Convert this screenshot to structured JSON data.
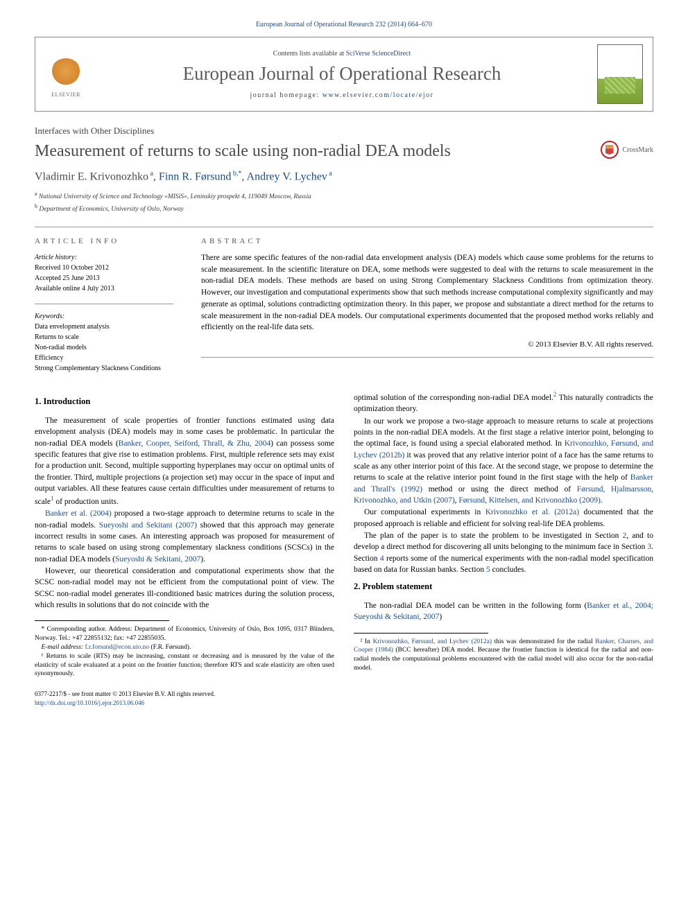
{
  "journal_ref": "European Journal of Operational Research 232 (2014) 664–670",
  "header": {
    "contents_prefix": "Contents lists available at ",
    "contents_link": "SciVerse ScienceDirect",
    "journal_title": "European Journal of Operational Research",
    "homepage_prefix": "journal homepage: ",
    "homepage_link": "www.elsevier.com/locate/ejor",
    "publisher": "ELSEVIER"
  },
  "section_tag": "Interfaces with Other Disciplines",
  "title": "Measurement of returns to scale using non-radial DEA models",
  "crossmark": "CrossMark",
  "authors_html": "Vladimir E. Krivonozhko ᵃ, Finn R. Førsund ᵇ·*, Andrey V. Lychev ᵃ",
  "authors": [
    {
      "name": "Vladimir E. Krivonozhko",
      "aff": "a",
      "link": false
    },
    {
      "name": "Finn R. Førsund",
      "aff": "b,",
      "corr": "*",
      "link": true
    },
    {
      "name": "Andrey V. Lychev",
      "aff": "a",
      "link": true
    }
  ],
  "affiliations": [
    {
      "sup": "a",
      "text": "National University of Science and Technology «MISiS», Leninskiy prospekt 4, 119049 Moscow, Russia"
    },
    {
      "sup": "b",
      "text": "Department of Economics, University of Oslo, Norway"
    }
  ],
  "info": {
    "left_header": "article info",
    "right_header": "abstract",
    "history_label": "Article history:",
    "history": [
      "Received 10 October 2012",
      "Accepted 25 June 2013",
      "Available online 4 July 2013"
    ],
    "keywords_label": "Keywords:",
    "keywords": [
      "Data envelopment analysis",
      "Returns to scale",
      "Non-radial models",
      "Efficiency",
      "Strong Complementary Slackness Conditions"
    ]
  },
  "abstract": "There are some specific features of the non-radial data envelopment analysis (DEA) models which cause some problems for the returns to scale measurement. In the scientific literature on DEA, some methods were suggested to deal with the returns to scale measurement in the non-radial DEA models. These methods are based on using Strong Complementary Slackness Conditions from optimization theory. However, our investigation and computational experiments show that such methods increase computational complexity significantly and may generate as optimal, solutions contradicting optimization theory. In this paper, we propose and substantiate a direct method for the returns to scale measurement in the non-radial DEA models. Our computational experiments documented that the proposed method works reliably and efficiently on the real-life data sets.",
  "copyright": "© 2013 Elsevier B.V. All rights reserved.",
  "sections": {
    "s1_title": "1. Introduction",
    "s1_p1a": "The measurement of scale properties of frontier functions estimated using data envelopment analysis (DEA) models may in some cases be problematic. In particular the non-radial DEA models (",
    "s1_p1_ref1": "Banker, Cooper, Seiford, Thrall, & Zhu, 2004",
    "s1_p1b": ") can possess some specific features that give rise to estimation problems. First, multiple reference sets may exist for a production unit. Second, multiple supporting hyperplanes may occur on optimal units of the frontier. Third, multiple projections (a projection set) may occur in the space of input and output variables. All these features cause certain difficulties under measurement of returns to scale",
    "s1_p1_fn": "1",
    "s1_p1c": " of production units.",
    "s1_p2_ref1": "Banker et al. (2004)",
    "s1_p2a": " proposed a two-stage approach to determine returns to scale in the non-radial models. ",
    "s1_p2_ref2": "Sueyoshi and Sekitani (2007)",
    "s1_p2b": " showed that this approach may generate incorrect results in some cases. An interesting approach was proposed for measurement of returns to scale based on using strong complementary slackness conditions (SCSCs) in the non-radial DEA models (",
    "s1_p2_ref3": "Sueyoshi & Sekitani, 2007",
    "s1_p2c": ").",
    "s1_p3": "However, our theoretical consideration and computational experiments show that the SCSC non-radial model may not be efficient from the computational point of view. The SCSC non-radial model generates ill-conditioned basic matrices during the solution process, which results in solutions that do not coincide with the",
    "s1_p3b": "optimal solution of the corresponding non-radial DEA model.",
    "s1_p3_fn": "2",
    "s1_p3c": " This naturally contradicts the optimization theory.",
    "s1_p4a": "In our work we propose a two-stage approach to measure returns to scale at projections points in the non-radial DEA models. At the first stage a relative interior point, belonging to the optimal face, is found using a special elaborated method. In ",
    "s1_p4_ref1": "Krivonozhko, Førsund, and Lychev (2012b)",
    "s1_p4b": " it was proved that any relative interior point of a face has the same returns to scale as any other interior point of this face. At the second stage, we propose to determine the returns to scale at the relative interior point found in the first stage with the help of ",
    "s1_p4_ref2": "Banker and Thrall's (1992)",
    "s1_p4c": " method or using the direct method of ",
    "s1_p4_ref3": "Førsund, Hjalmarsson, Krivonozhko, and Utkin (2007)",
    "s1_p4d": ", ",
    "s1_p4_ref4": "Førsund, Kittelsen, and Krivonozhko (2009)",
    "s1_p4e": ".",
    "s1_p5a": "Our computational experiments in ",
    "s1_p5_ref1": "Krivonozhko et al. (2012a)",
    "s1_p5b": " documented that the proposed approach is reliable and efficient for solving real-life DEA problems.",
    "s1_p6a": "The plan of the paper is to state the problem to be investigated in Section ",
    "s1_p6_ref1": "2",
    "s1_p6b": ", and to develop a direct method for discovering all units belonging to the minimum face in Section ",
    "s1_p6_ref2": "3",
    "s1_p6c": ". Section ",
    "s1_p6_ref3": "4",
    "s1_p6d": " reports some of the numerical experiments with the non-radial model specification based on data for Russian banks. Section ",
    "s1_p6_ref4": "5",
    "s1_p6e": " concludes.",
    "s2_title": "2. Problem statement",
    "s2_p1a": "The non-radial DEA model can be written in the following form (",
    "s2_p1_ref1": "Banker et al., 2004; Sueyoshi & Sekitani, 2007",
    "s2_p1b": ")"
  },
  "footnotes_left": {
    "corr": "* Corresponding author. Address: Department of Economics, University of Oslo, Box 1095, 0317 Blindern, Norway. Tel.: +47 22855132; fax: +47 22855035.",
    "email_label": "E-mail address:",
    "email": "f.r.forsund@econ.uio.no",
    "email_who": "(F.R. Førsund).",
    "fn1": "¹ Returns to scale (RTS) may be increasing, constant or decreasing and is measured by the value of the elasticity of scale evaluated at a point on the frontier function; therefore RTS and scale elasticity are often used synonymously."
  },
  "footnotes_right": {
    "fn2a": "² In ",
    "fn2_ref1": "Krivonozhko, Førsund, and Lychev (2012a)",
    "fn2b": " this was demonstrated for the radial ",
    "fn2_ref2": "Banker, Charnes, and Cooper (1984)",
    "fn2c": " (BCC hereafter) DEA model. Because the frontier function is identical for the radial and non-radial models the computational problems encountered with the radial model will also occur for the non-radial model."
  },
  "footer": {
    "issn": "0377-2217/$ - see front matter © 2013 Elsevier B.V. All rights reserved.",
    "doi_label": "http://dx.doi.org/",
    "doi": "10.1016/j.ejor.2013.06.046"
  },
  "colors": {
    "link": "#1a4d8f",
    "text": "#000000",
    "heading_gray": "#4a4a4a",
    "border": "#999999",
    "elsevier_orange": "#e8a04a"
  }
}
